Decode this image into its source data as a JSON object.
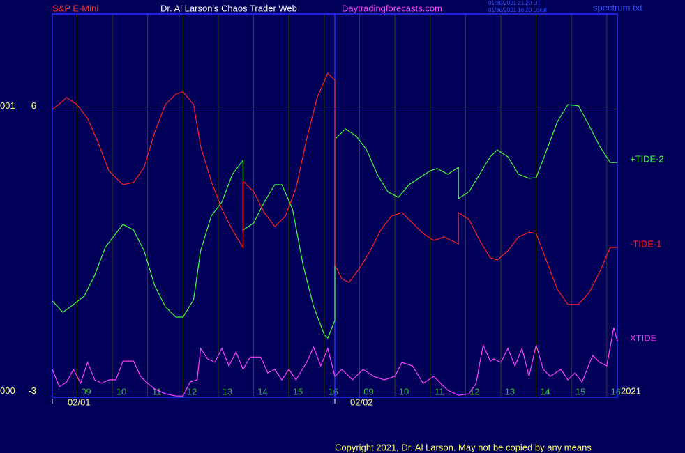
{
  "chart_data": {
    "type": "line",
    "title": "Dr. Al Larson's Chaos Trader Web",
    "instrument": "S&P E-Mini",
    "website": "Daytradingforecasts.com",
    "timestamps": [
      "01/30/2021 21:20 UT",
      "01/30/2021 16:20 Local"
    ],
    "file": "spectrum.txt",
    "copyright": "Copyright 2021, Dr. Al Larson. May not be copied by any means",
    "year_label": "2021",
    "y_left_labels": [
      "001",
      "000"
    ],
    "xlim": [
      0,
      160
    ],
    "ylim": [
      -3.1,
      9
    ],
    "yticks": [
      6,
      -3
    ],
    "xticks": [
      {
        "value": 7,
        "label": "09"
      },
      {
        "value": 17,
        "label": "10"
      },
      {
        "value": 27,
        "label": "11"
      },
      {
        "value": 37,
        "label": "12"
      },
      {
        "value": 47,
        "label": "13"
      },
      {
        "value": 57,
        "label": "14"
      },
      {
        "value": 67,
        "label": "15"
      },
      {
        "value": 77,
        "label": "16"
      },
      {
        "value": 87,
        "label": "09"
      },
      {
        "value": 97,
        "label": "10"
      },
      {
        "value": 107,
        "label": "11"
      },
      {
        "value": 117,
        "label": "12"
      },
      {
        "value": 127,
        "label": "13"
      },
      {
        "value": 137,
        "label": "14"
      },
      {
        "value": 147,
        "label": "15"
      },
      {
        "value": 157,
        "label": "16"
      }
    ],
    "date_labels": [
      {
        "value": 0,
        "label": "02/01"
      },
      {
        "value": 80,
        "label": "02/02"
      }
    ],
    "grid": true,
    "series": [
      {
        "name": "+TIDE-2",
        "color": "#40ff40",
        "x": [
          0,
          3,
          6,
          9,
          12,
          15,
          18,
          20,
          23,
          26,
          29,
          32,
          35,
          37,
          40,
          42,
          45,
          48,
          51,
          54,
          54,
          57,
          60,
          63,
          65,
          68,
          71,
          74,
          77,
          78,
          80,
          80,
          83,
          86,
          89,
          92,
          95,
          98,
          101,
          104,
          107,
          109,
          112,
          115,
          115,
          118,
          121,
          124,
          126,
          129,
          132,
          135,
          137,
          140,
          143,
          146,
          149,
          152,
          155,
          158,
          160
        ],
        "values": [
          -0.06,
          -0.42,
          -0.17,
          0.09,
          0.75,
          1.63,
          2.07,
          2.36,
          2.18,
          1.52,
          0.42,
          -0.24,
          -0.57,
          -0.57,
          -0.02,
          1.52,
          2.62,
          3.06,
          3.94,
          4.38,
          2.18,
          2.4,
          3.06,
          3.61,
          3.61,
          2.84,
          1.08,
          -0.24,
          -1.12,
          -1.23,
          -0.68,
          5.04,
          5.37,
          5.15,
          4.71,
          3.94,
          3.39,
          3.21,
          3.61,
          3.83,
          4.05,
          4.12,
          3.94,
          4.16,
          3.17,
          3.39,
          3.94,
          4.49,
          4.71,
          4.49,
          3.94,
          3.81,
          3.83,
          4.71,
          5.59,
          6.14,
          6.1,
          5.48,
          4.82,
          4.31,
          4.31
        ]
      },
      {
        "name": "-TIDE-1",
        "color": "#ff2020",
        "x": [
          0,
          3,
          4,
          7,
          10,
          13,
          16,
          20,
          23,
          26,
          29,
          32,
          35,
          37,
          40,
          42,
          45,
          48,
          51,
          54,
          54,
          57,
          60,
          63,
          66,
          69,
          72,
          75,
          78,
          80,
          80,
          82,
          84,
          87,
          90,
          93,
          96,
          99,
          102,
          105,
          108,
          111,
          115,
          115,
          118,
          121,
          124,
          126,
          129,
          132,
          135,
          137,
          140,
          143,
          146,
          149,
          152,
          155,
          158,
          160
        ],
        "values": [
          5.99,
          6.25,
          6.36,
          6.14,
          5.7,
          4.93,
          4.05,
          3.61,
          3.68,
          4.16,
          5.26,
          6.14,
          6.47,
          6.54,
          6.14,
          4.82,
          3.72,
          2.84,
          2.18,
          1.63,
          3.72,
          3.39,
          2.73,
          2.29,
          2.62,
          3.5,
          5.04,
          6.36,
          7.13,
          6.91,
          1.08,
          0.64,
          0.53,
          0.97,
          1.52,
          2.18,
          2.62,
          2.73,
          2.4,
          2.07,
          1.85,
          1.96,
          1.74,
          2.73,
          2.51,
          1.85,
          1.3,
          1.23,
          1.52,
          1.96,
          2.11,
          2.07,
          1.19,
          0.31,
          -0.17,
          -0.17,
          0.2,
          0.86,
          1.63,
          1.63
        ]
      },
      {
        "name": "XTIDE",
        "color": "#ff40ff",
        "x": [
          0,
          2,
          4,
          6,
          8,
          10,
          12,
          14,
          16,
          18,
          20,
          23,
          25,
          27,
          29,
          32,
          35,
          37,
          39,
          41,
          42,
          44,
          46,
          48,
          50,
          52,
          54,
          56,
          59,
          61,
          63,
          65,
          67,
          69,
          72,
          74,
          76,
          78,
          80,
          82,
          85,
          88,
          91,
          94,
          97,
          99,
          102,
          105,
          108,
          112,
          115,
          118,
          120,
          122,
          124,
          125,
          127,
          129,
          131,
          133,
          135,
          137,
          139,
          141,
          144,
          146,
          148,
          150,
          153,
          155,
          157,
          159,
          160
        ],
        "values": [
          -2.22,
          -2.77,
          -2.62,
          -2.22,
          -2.66,
          -2.0,
          -2.55,
          -2.66,
          -2.55,
          -2.55,
          -1.96,
          -1.96,
          -2.44,
          -2.66,
          -2.84,
          -2.99,
          -3.06,
          -3.06,
          -2.62,
          -2.55,
          -1.56,
          -1.89,
          -2.0,
          -1.56,
          -2.11,
          -1.67,
          -2.22,
          -1.83,
          -1.83,
          -2.33,
          -2.22,
          -2.55,
          -2.22,
          -2.55,
          -2.0,
          -1.52,
          -2.11,
          -1.56,
          -2.44,
          -2.22,
          -2.55,
          -2.22,
          -2.44,
          -2.55,
          -2.44,
          -2.0,
          -2.11,
          -2.66,
          -2.44,
          -2.88,
          -3.04,
          -2.99,
          -2.66,
          -1.45,
          -1.96,
          -1.89,
          -2.0,
          -1.56,
          -2.11,
          -1.56,
          -2.44,
          -1.45,
          -2.22,
          -2.44,
          -2.22,
          -2.55,
          -2.33,
          -2.62,
          -1.78,
          -2.0,
          -2.11,
          -0.9,
          -1.34
        ]
      }
    ]
  }
}
